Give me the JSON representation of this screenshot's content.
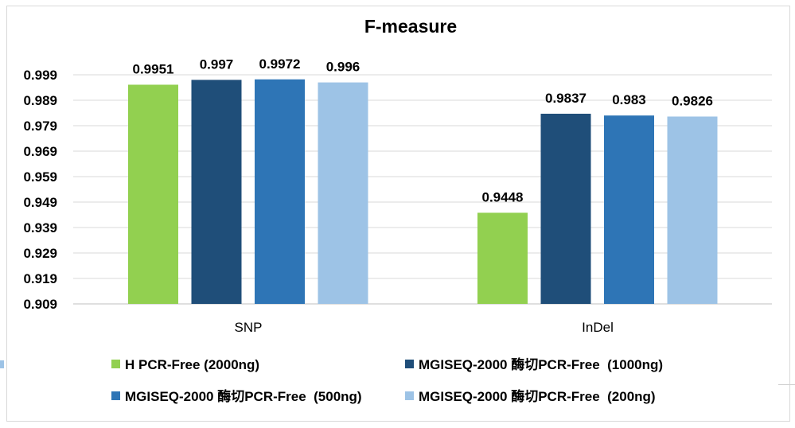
{
  "chart_data": {
    "type": "bar",
    "title": "F-measure",
    "categories": [
      "SNP",
      "InDel"
    ],
    "ylim": [
      0.909,
      0.999
    ],
    "yticks": [
      "0.999",
      "0.989",
      "0.979",
      "0.969",
      "0.959",
      "0.949",
      "0.939",
      "0.929",
      "0.919",
      "0.909"
    ],
    "grid": true,
    "legend_position": "bottom",
    "series": [
      {
        "name": "H PCR-Free (2000ng)",
        "values": [
          0.9951,
          0.9448
        ],
        "labels": [
          "0.9951",
          "0.9448"
        ],
        "color": "#92d050"
      },
      {
        "name": "MGISEQ-2000 酶切PCR-Free  (1000ng)",
        "values": [
          0.997,
          0.9837
        ],
        "labels": [
          "0.997",
          "0.9837"
        ],
        "color": "#1f4e79"
      },
      {
        "name": "MGISEQ-2000 酶切PCR-Free  (500ng)",
        "values": [
          0.9972,
          0.983
        ],
        "labels": [
          "0.9972",
          "0.983"
        ],
        "color": "#2e75b6"
      },
      {
        "name": "MGISEQ-2000 酶切PCR-Free  (200ng)",
        "values": [
          0.996,
          0.9826
        ],
        "labels": [
          "0.996",
          "0.9826"
        ],
        "color": "#9dc3e6"
      }
    ]
  }
}
